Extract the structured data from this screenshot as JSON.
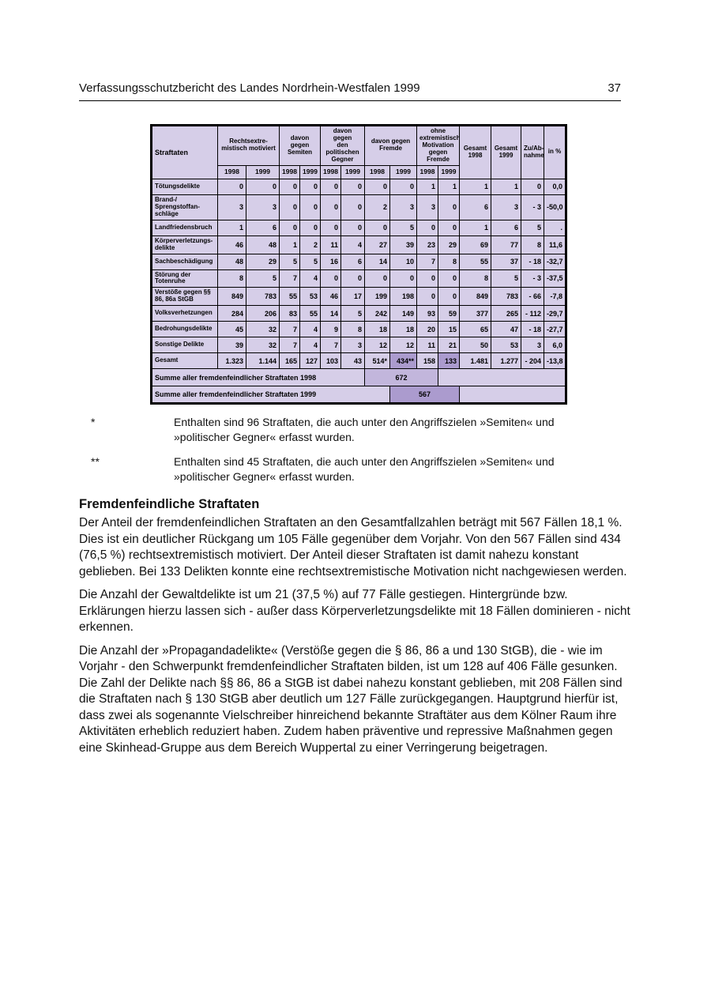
{
  "colors": {
    "table_bg": "#d6cee8",
    "highlight_dark": "#ab9bce",
    "highlight_medium": "#c2b6dc"
  },
  "header": {
    "title": "Verfassungsschutzbericht des Landes Nordrhein-Westfalen 1999",
    "page_number": "37"
  },
  "table": {
    "first_col_header": "Straftaten",
    "group_headers": [
      "Rechtsextre-\nmistisch motiviert",
      "davon gegen\nSemiten",
      "davon gegen\nden politischen\nGegner",
      "davon gegen\nFremde",
      "ohne\nextremistische\nMotivation\ngegen Fremde"
    ],
    "year_labels": [
      "1998",
      "1999"
    ],
    "tail_headers": [
      "Gesamt\n1998",
      "Gesamt\n1999",
      "Zu/Ab-\nnahme",
      "in %"
    ],
    "rows": [
      {
        "label": "Tötungsdelikte",
        "values": [
          "0",
          "0",
          "0",
          "0",
          "0",
          "0",
          "0",
          "0",
          "1",
          "1",
          "1",
          "1",
          "0",
          "0,0"
        ]
      },
      {
        "label": "Brand-/ Sprengstoffan-\nschläge",
        "values": [
          "3",
          "3",
          "0",
          "0",
          "0",
          "0",
          "2",
          "3",
          "3",
          "0",
          "6",
          "3",
          "- 3",
          "-50,0"
        ]
      },
      {
        "label": "Landfriedensbruch",
        "values": [
          "1",
          "6",
          "0",
          "0",
          "0",
          "0",
          "0",
          "5",
          "0",
          "0",
          "1",
          "6",
          "5",
          "."
        ]
      },
      {
        "label": "Körperverletzungs-\ndelikte",
        "values": [
          "46",
          "48",
          "1",
          "2",
          "11",
          "4",
          "27",
          "39",
          "23",
          "29",
          "69",
          "77",
          "8",
          "11,6"
        ]
      },
      {
        "label": "Sachbeschädigung",
        "values": [
          "48",
          "29",
          "5",
          "5",
          "16",
          "6",
          "14",
          "10",
          "7",
          "8",
          "55",
          "37",
          "- 18",
          "-32,7"
        ]
      },
      {
        "label": "Störung der Totenruhe",
        "values": [
          "8",
          "5",
          "7",
          "4",
          "0",
          "0",
          "0",
          "0",
          "0",
          "0",
          "8",
          "5",
          "- 3",
          "-37,5"
        ]
      },
      {
        "label": "Verstöße gegen §§\n86, 86a StGB",
        "values": [
          "849",
          "783",
          "55",
          "53",
          "46",
          "17",
          "199",
          "198",
          "0",
          "0",
          "849",
          "783",
          "- 66",
          "-7,8"
        ]
      },
      {
        "label": "Volksverhetzungen",
        "values": [
          "284",
          "206",
          "83",
          "55",
          "14",
          "5",
          "242",
          "149",
          "93",
          "59",
          "377",
          "265",
          "- 112",
          "-29,7"
        ]
      },
      {
        "label": "Bedrohungsdelikte",
        "values": [
          "45",
          "32",
          "7",
          "4",
          "9",
          "8",
          "18",
          "18",
          "20",
          "15",
          "65",
          "47",
          "- 18",
          "-27,7"
        ]
      },
      {
        "label": "Sonstige Delikte",
        "values": [
          "39",
          "32",
          "7",
          "4",
          "7",
          "3",
          "12",
          "12",
          "11",
          "21",
          "50",
          "53",
          "3",
          "6,0"
        ]
      }
    ],
    "total_row": {
      "label": "Gesamt",
      "values": [
        "1.323",
        "1.144",
        "165",
        "127",
        "103",
        "43",
        "514*",
        "434**",
        "158",
        "133",
        "1.481",
        "1.277",
        "- 204",
        "-13,8"
      ],
      "highlight_value_indices": [
        7,
        9
      ]
    },
    "summary_rows": [
      {
        "label": "Summe aller fremdenfeindlicher Straftaten 1998",
        "value": "672",
        "shade": "medium"
      },
      {
        "label": "Summe aller fremdenfeindlicher Straftaten 1999",
        "value": "567",
        "shade": "dark"
      }
    ]
  },
  "footnotes": [
    {
      "marker": "*",
      "text": "Enthalten sind 96 Straftaten, die auch unter den Angriffszielen »Semiten« und »politischer Gegner« erfasst wurden."
    },
    {
      "marker": "**",
      "text": "Enthalten sind 45 Straftaten, die auch unter den Angriffszielen »Semiten« und »politischer Gegner« erfasst wurden."
    }
  ],
  "section": {
    "heading": "Fremdenfeindliche Straftaten",
    "paragraphs": [
      "Der Anteil der fremdenfeindlichen Straftaten an den Gesamtfallzahlen beträgt mit 567 Fällen 18,1 %. Dies ist ein deutlicher Rückgang um 105 Fälle gegenüber dem Vorjahr. Von den 567 Fällen sind 434 (76,5 %) rechtsextremistisch motiviert. Der Anteil dieser Straftaten ist damit nahezu konstant geblieben. Bei 133 Delikten konnte eine rechtsextremistische Motivation nicht nachgewiesen werden.",
      "Die Anzahl der Gewaltdelikte ist um 21 (37,5 %) auf 77 Fälle gestiegen. Hintergründe bzw. Erklärungen hierzu lassen sich - außer dass Körperverletzungsdelikte mit 18 Fällen dominieren - nicht erkennen.",
      "Die Anzahl der »Propagandadelikte« (Verstöße gegen die § 86, 86 a und 130 StGB), die - wie im Vorjahr - den Schwerpunkt fremdenfeindlicher Straftaten bilden, ist um 128 auf 406 Fälle gesunken. Die Zahl der Delikte nach §§ 86, 86 a StGB ist dabei nahezu konstant geblieben, mit 208 Fällen sind die Straftaten nach § 130 StGB aber deutlich um 127 Fälle zurückgegangen. Hauptgrund hierfür ist, dass zwei als sogenannte Vielschreiber hinreichend bekannte Straftäter aus dem Kölner Raum ihre Aktivitäten erheblich reduziert haben. Zudem haben präventive und repressive Maßnahmen gegen eine Skinhead-Gruppe aus dem Bereich Wuppertal zu einer Verringerung beigetragen."
    ]
  }
}
